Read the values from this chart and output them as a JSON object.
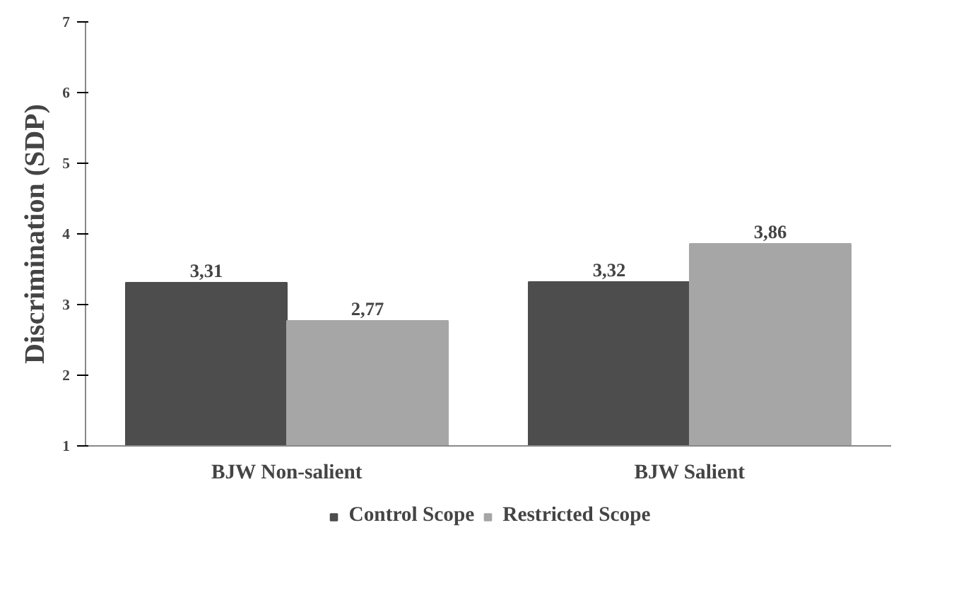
{
  "chart_data": {
    "type": "bar",
    "ylabel": "Discrimination (SDP)",
    "categories": [
      "BJW Non-salient",
      "BJW Salient"
    ],
    "series": [
      {
        "name": "Control Scope",
        "color": "#4d4d4d",
        "values": [
          3.31,
          3.32
        ],
        "value_labels": [
          "3,31",
          "3,32"
        ]
      },
      {
        "name": "Restricted Scope",
        "color": "#a6a6a6",
        "values": [
          2.77,
          3.86
        ],
        "value_labels": [
          "2,77",
          "3,86"
        ]
      }
    ],
    "ylim": [
      1,
      7
    ],
    "yticks": [
      1,
      2,
      3,
      4,
      5,
      6,
      7
    ],
    "grid": false,
    "legend": "bottom"
  }
}
